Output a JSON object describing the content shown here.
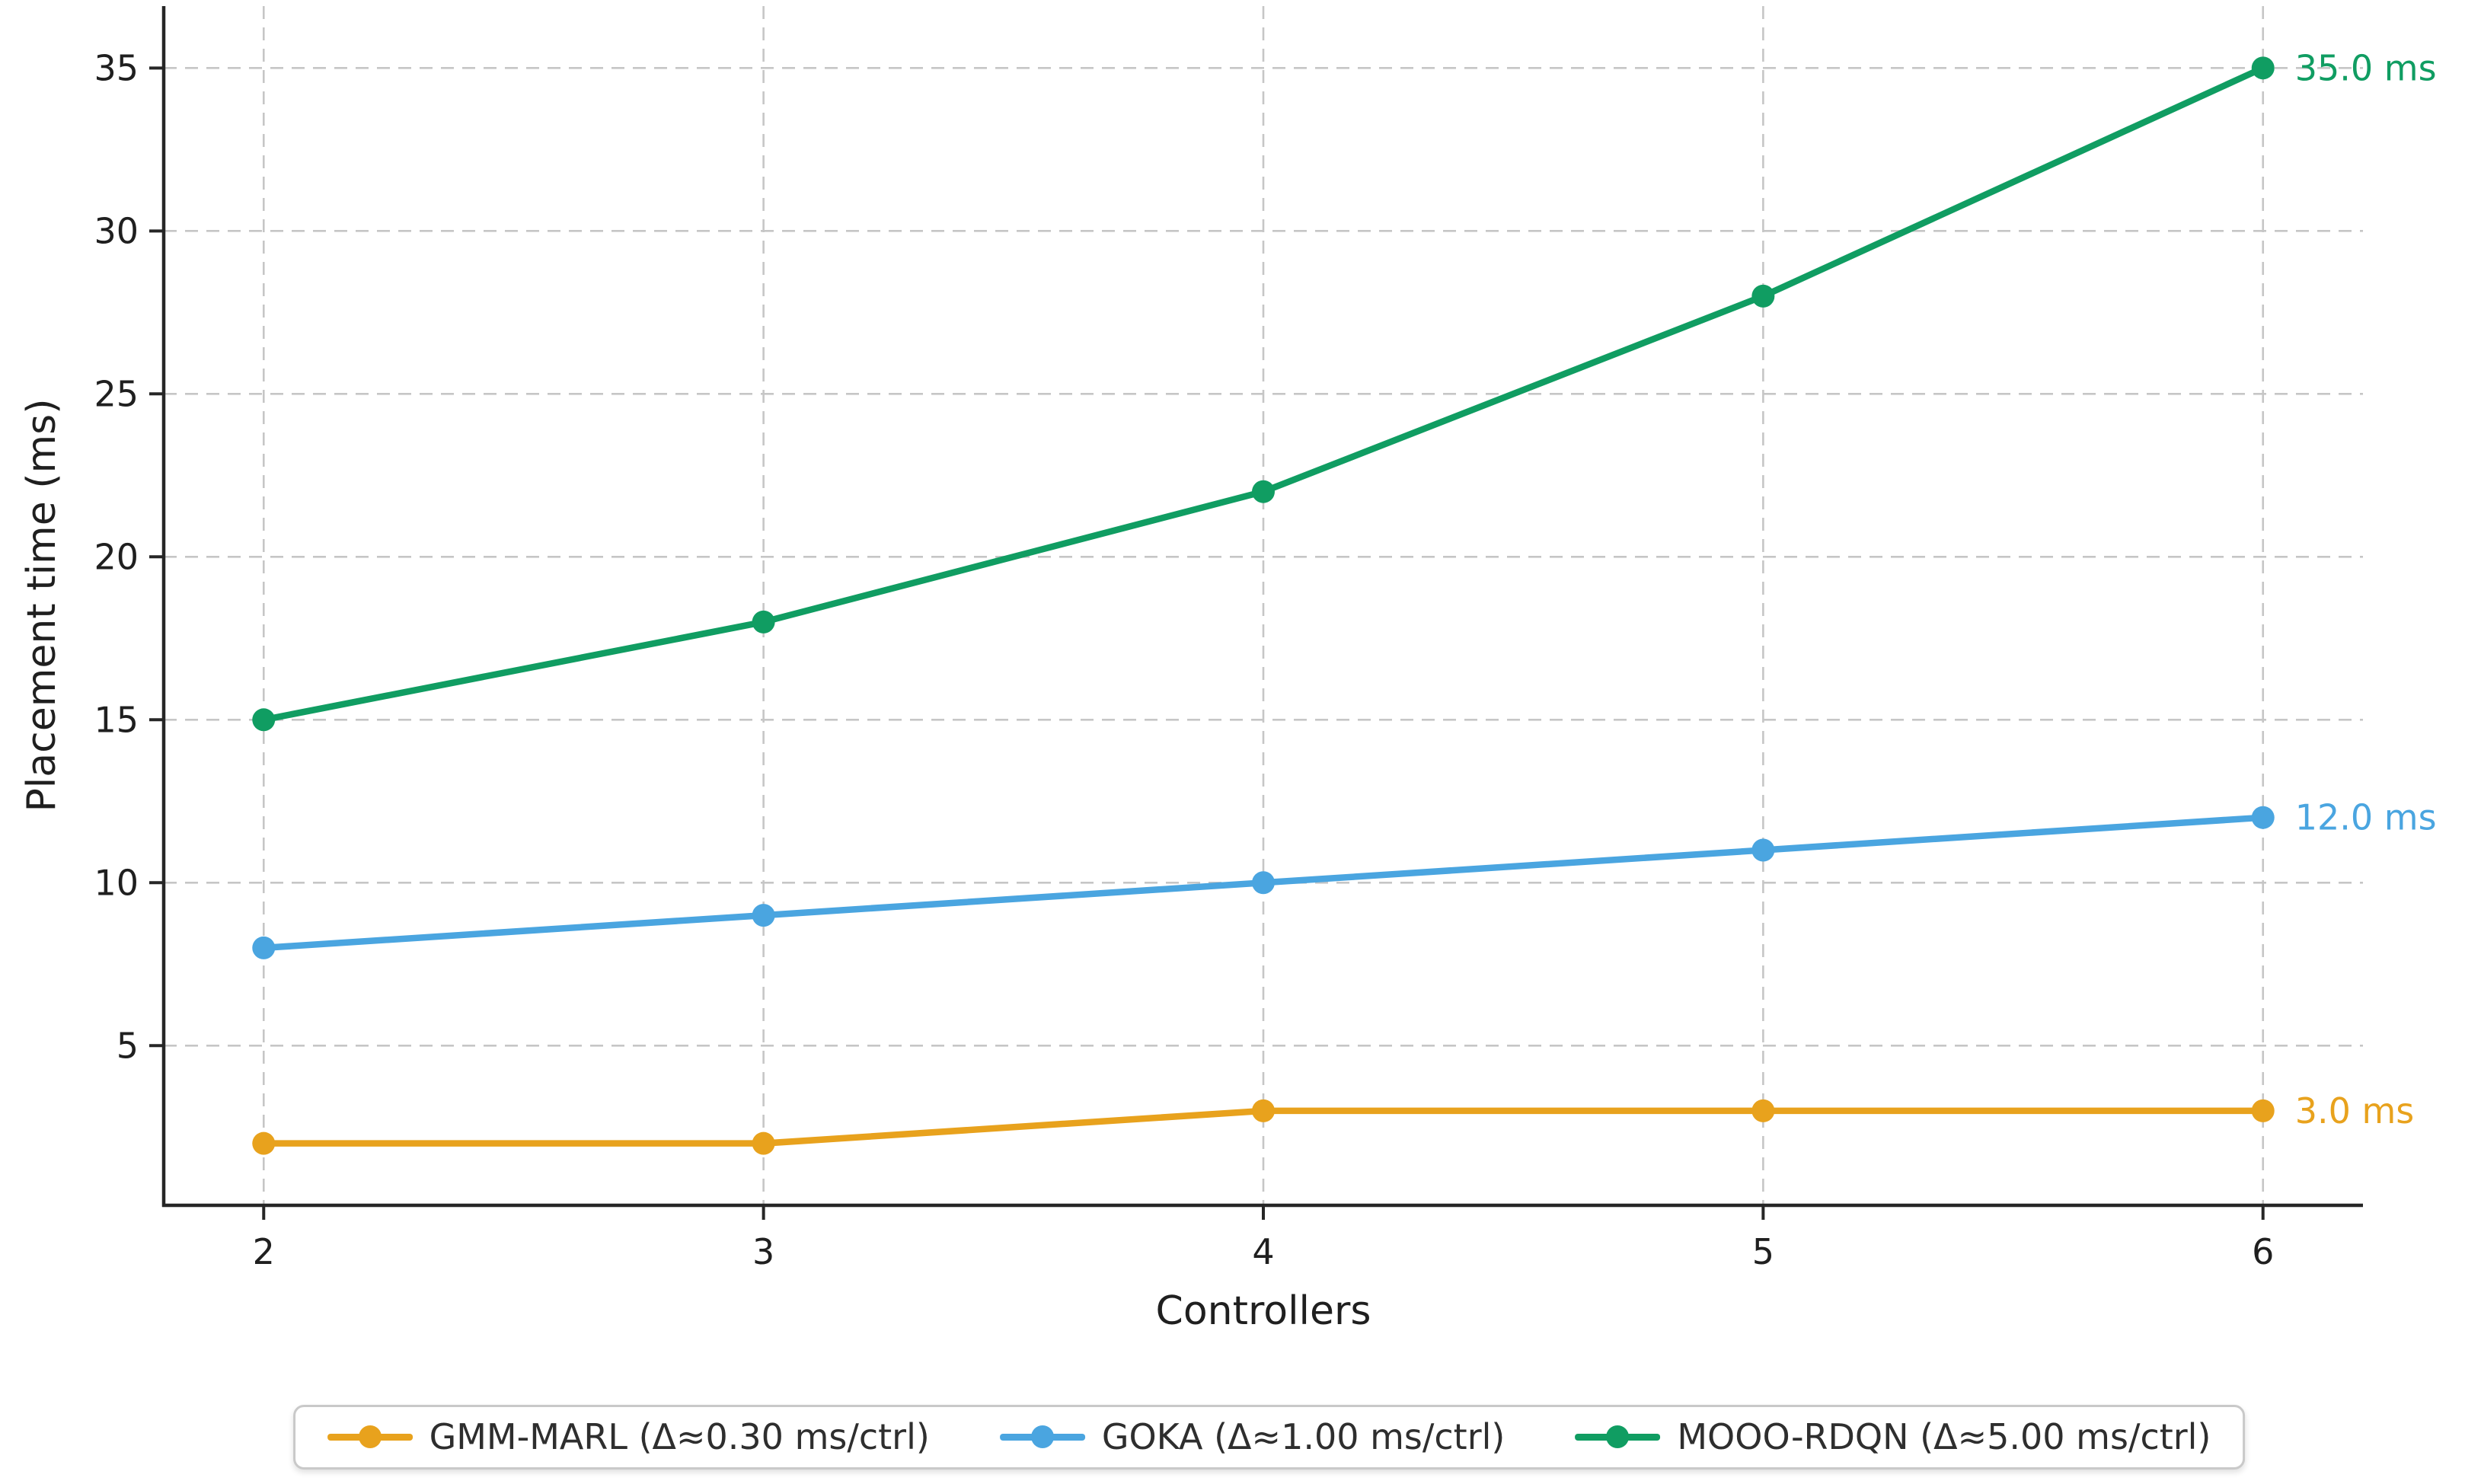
{
  "chart_data": {
    "type": "line",
    "title": "",
    "xlabel": "Controllers",
    "ylabel": "Placement time (ms)",
    "x": [
      2,
      3,
      4,
      5,
      6
    ],
    "xticks": [
      "2",
      "3",
      "4",
      "5",
      "6"
    ],
    "yticks": [
      5,
      10,
      15,
      20,
      25,
      30,
      35
    ],
    "xlim": [
      1.8,
      6.2
    ],
    "ylim": [
      0.1,
      36.9
    ],
    "grid": "dashed gridlines on both axes at each tick",
    "legend_position": "bottom center, horizontal",
    "series": [
      {
        "id": "gmm-marl",
        "name": "GMM-MARL",
        "legend_label": "GMM-MARL (Δ≈0.30 ms/ctrl)",
        "color": "#E8A21D",
        "values": [
          2,
          2,
          3,
          3,
          3
        ],
        "end_label": "3.0 ms"
      },
      {
        "id": "goka",
        "name": "GOKA",
        "legend_label": "GOKA (Δ≈1.00 ms/ctrl)",
        "color": "#4AA5E0",
        "values": [
          8,
          9,
          10,
          11,
          12
        ],
        "end_label": "12.0 ms"
      },
      {
        "id": "mooo-rdqn",
        "name": "MOOO-RDQN",
        "legend_label": "MOOO-RDQN (Δ≈5.00 ms/ctrl)",
        "color": "#109D62",
        "values": [
          15,
          18,
          22,
          28,
          35
        ],
        "end_label": "35.0 ms"
      }
    ]
  },
  "style": {
    "background": "#ffffff",
    "axis_color": "#262626",
    "tick_text_color": "#1f1f1f",
    "grid_color": "#c6c6c6",
    "legend_border_color": "#c9c9c9",
    "legend_text_color": "#2e2e2e"
  }
}
